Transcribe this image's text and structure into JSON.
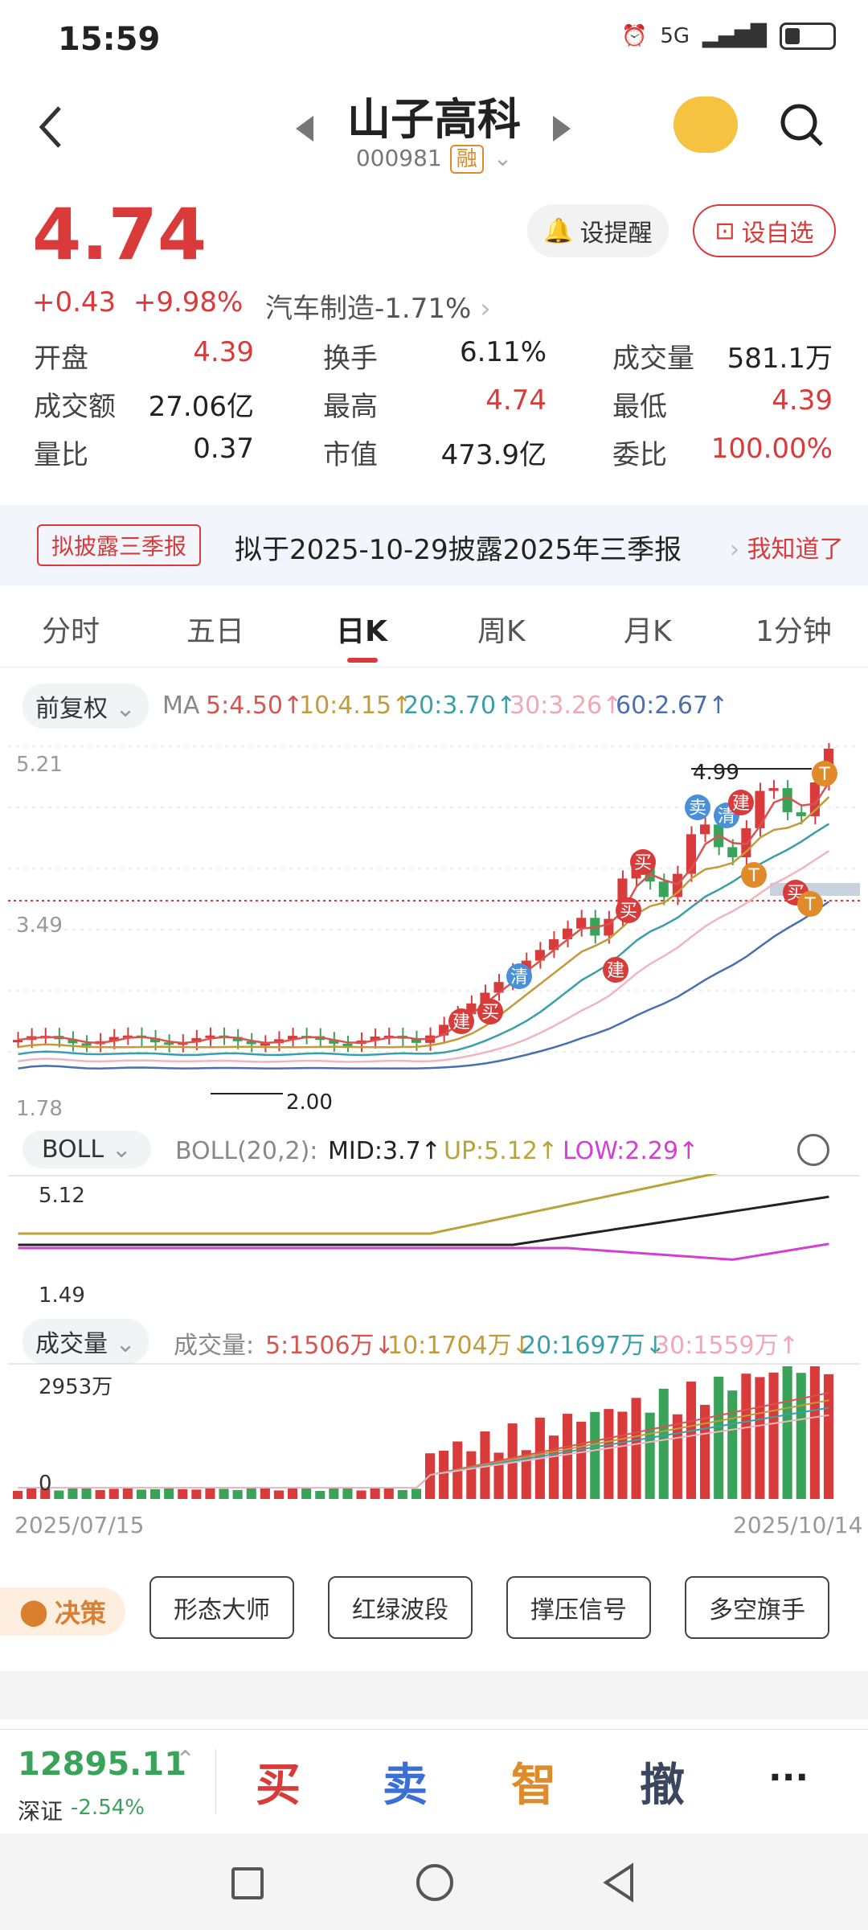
{
  "status": {
    "time": "15:59",
    "signal": "5G",
    "battery_icon": "battery-icon"
  },
  "header": {
    "title": "山子高科",
    "code": "000981",
    "margin_badge": "融"
  },
  "price": {
    "last": "4.74",
    "change": "+0.43",
    "pct": "+9.98%",
    "sector": "汽车制造-1.71%",
    "remind": "设提醒",
    "watch": "设自选"
  },
  "quote": [
    [
      [
        "开盘",
        "4.39"
      ],
      [
        "换手",
        "6.11%"
      ],
      [
        "成交量",
        "581.1万"
      ]
    ],
    [
      [
        "成交额",
        "27.06亿"
      ],
      [
        "最高",
        "4.74"
      ],
      [
        "最低",
        "4.39"
      ]
    ],
    [
      [
        "量比",
        "0.37"
      ],
      [
        "市值",
        "473.9亿"
      ],
      [
        "委比",
        "100.00%"
      ]
    ]
  ],
  "notice": {
    "tag": "拟披露三季报",
    "text": "拟于2025-10-29披露2025年三季报",
    "action": "我知道了"
  },
  "tabs": [
    "分时",
    "五日",
    "日K",
    "周K",
    "月K",
    "1分钟"
  ],
  "ma": {
    "adj": "前复权",
    "label": "MA",
    "items": [
      "5:4.50↑",
      "10:4.15↑",
      "20:3.70↑",
      "30:3.26↑",
      "60:2.67↑"
    ]
  },
  "kline": {
    "y_top": "5.21",
    "y_mid": "3.49",
    "y_bot": "1.78",
    "hi_mark": "4.99",
    "lo_mark": "2.00",
    "signals": [
      "建",
      "买",
      "清",
      "建",
      "买",
      "买",
      "卖",
      "清",
      "建",
      "T",
      "T",
      "买",
      "T"
    ]
  },
  "boll": {
    "name": "BOLL",
    "params": "BOLL(20,2):",
    "mid": "MID:3.7↑",
    "up": "UP:5.12↑",
    "low": "LOW:2.29↑",
    "y_top": "5.12",
    "y_bot": "1.49"
  },
  "volume": {
    "name": "成交量",
    "label": "成交量:",
    "items": [
      "5:1506万↓",
      "10:1704万↓",
      "20:1697万↓",
      "30:1559万↑"
    ],
    "y_top": "2953万",
    "y_bot": "0",
    "date_start": "2025/07/15",
    "date_end": "2025/10/14"
  },
  "strategy": {
    "label": "决策",
    "tools": [
      "形态大师",
      "红绿波段",
      "撑压信号",
      "多空旗手"
    ]
  },
  "bottom": {
    "index_value": "12895.11",
    "index_name": "深证",
    "index_pct": "-2.54%",
    "buy": "买",
    "sell": "卖",
    "smart": "智",
    "cancel": "撤",
    "more": "···"
  },
  "colors": {
    "up": "#d93a3a",
    "down": "#3aa35a",
    "ma5": "#d9534f",
    "ma10": "#c49a3a",
    "ma20": "#3a9fa8",
    "ma30": "#f0b5c0",
    "ma60": "#4a6fb0"
  }
}
